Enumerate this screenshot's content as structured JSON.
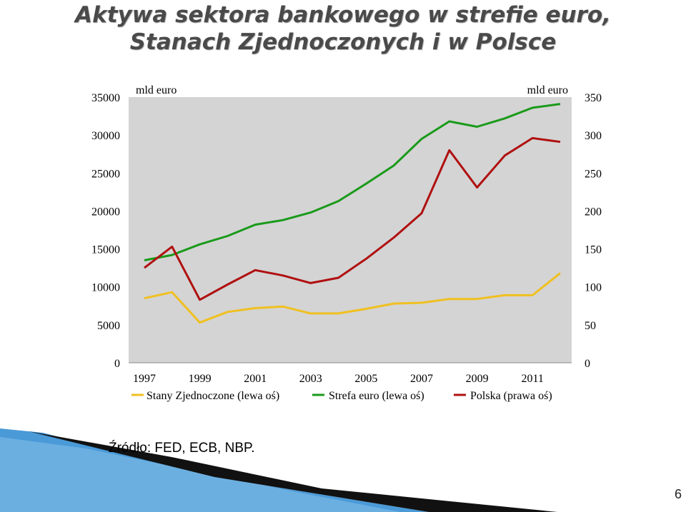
{
  "title": {
    "line1": "Aktywa sektora bankowego w strefie euro,",
    "line2": "Stanach Zjednoczonych i w Polsce"
  },
  "chart_data": {
    "type": "line",
    "left_axis_label": "mld euro",
    "right_axis_label": "mld euro",
    "x": [
      1997,
      1998,
      1999,
      2000,
      2001,
      2002,
      2003,
      2004,
      2005,
      2006,
      2007,
      2008,
      2009,
      2010,
      2011,
      2012
    ],
    "x_tick_labels": [
      "1997",
      "1999",
      "2001",
      "2003",
      "2005",
      "2007",
      "2009",
      "2011"
    ],
    "left_ylim": [
      0,
      35000
    ],
    "right_ylim": [
      0,
      350
    ],
    "left_ticks": [
      "0",
      "5000",
      "10000",
      "15000",
      "20000",
      "25000",
      "30000",
      "35000"
    ],
    "right_ticks": [
      "0",
      "50",
      "100",
      "150",
      "200",
      "250",
      "300",
      "350"
    ],
    "grid": false,
    "legend_position": "bottom",
    "series": [
      {
        "name": "Stany Zjednoczone (lewa oś)",
        "axis": "left",
        "color": "#f0c020",
        "values": [
          8500,
          9300,
          5300,
          6700,
          7200,
          7400,
          6500,
          6500,
          7100,
          7800,
          7900,
          8400,
          8400,
          8900,
          8900,
          11800
        ]
      },
      {
        "name": "Strefa euro (lewa oś)",
        "axis": "left",
        "color": "#1a9a1a",
        "values": [
          13500,
          14200,
          15600,
          16700,
          18200,
          18800,
          19800,
          21300,
          23600,
          26000,
          29500,
          31800,
          31100,
          32200,
          33600,
          34100
        ]
      },
      {
        "name": "Polska (prawa oś)",
        "axis": "right",
        "color": "#b01010",
        "values": [
          125,
          153,
          83,
          103,
          122,
          115,
          105,
          112,
          137,
          165,
          197,
          280,
          231,
          273,
          296,
          291
        ]
      }
    ]
  },
  "source": "Źródło: FED, ECB, NBP.",
  "page_number": "6",
  "colors": {
    "plot_bg": "#d4d4d4",
    "deco_blue": "#3b8fd0",
    "deco_black": "#111111"
  }
}
